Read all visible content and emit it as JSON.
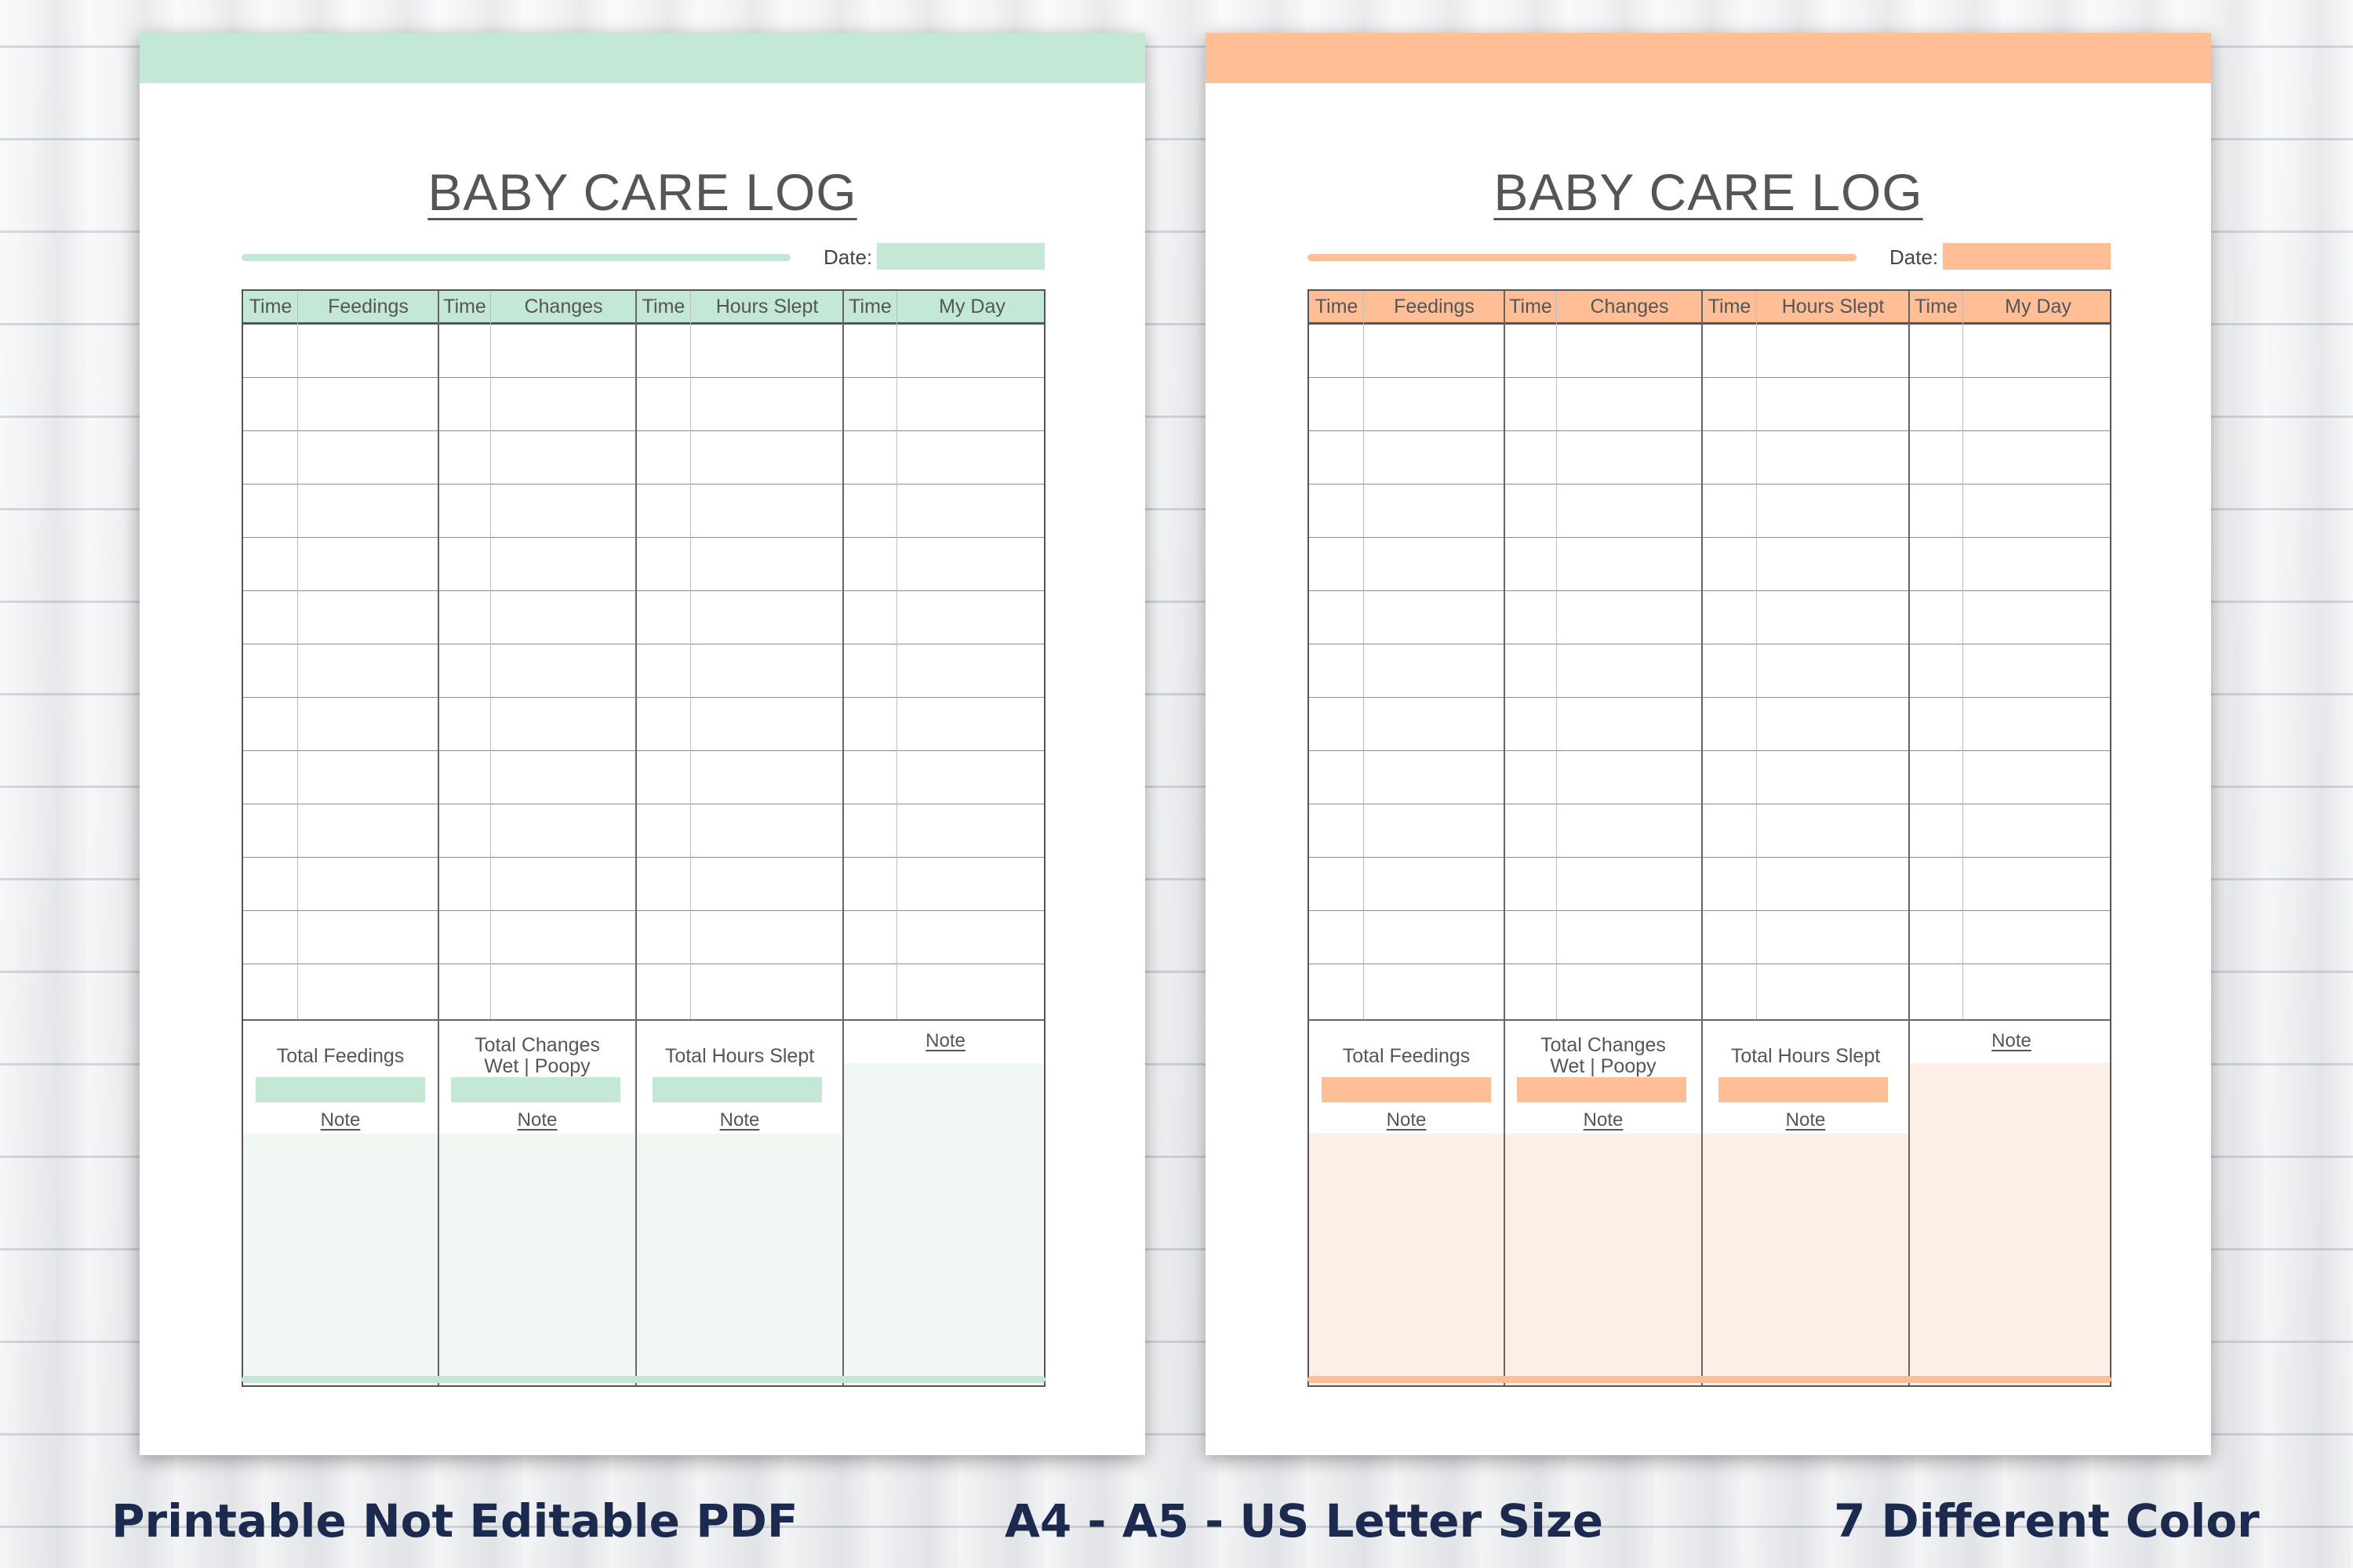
{
  "pages": [
    {
      "side": "left",
      "accent": "#c3e9d6",
      "accent_light": "#f1f8f4",
      "title": "BABY CARE LOG",
      "date_label": "Date:",
      "headers": [
        "Time",
        "Feedings",
        "Time",
        "Changes",
        "Time",
        "Hours Slept",
        "Time",
        "My Day"
      ],
      "totals": {
        "feedings": "Total Feedings",
        "changes_line1": "Total Changes",
        "changes_line2": "Wet | Poopy",
        "hours": "Total Hours Slept",
        "note": "Note"
      }
    },
    {
      "side": "right",
      "accent": "#ffbe96",
      "accent_light": "#fdeee6",
      "title": "BABY CARE LOG",
      "date_label": "Date:",
      "headers": [
        "Time",
        "Feedings",
        "Time",
        "Changes",
        "Time",
        "Hours Slept",
        "Time",
        "My Day"
      ],
      "totals": {
        "feedings": "Total Feedings",
        "changes_line1": "Total Changes",
        "changes_line2": "Wet | Poopy",
        "hours": "Total Hours Slept",
        "note": "Note"
      }
    }
  ],
  "captions": {
    "left": "Printable Not Editable PDF",
    "center": "A4 - A5 - US Letter Size",
    "right": "7 Different Color"
  }
}
